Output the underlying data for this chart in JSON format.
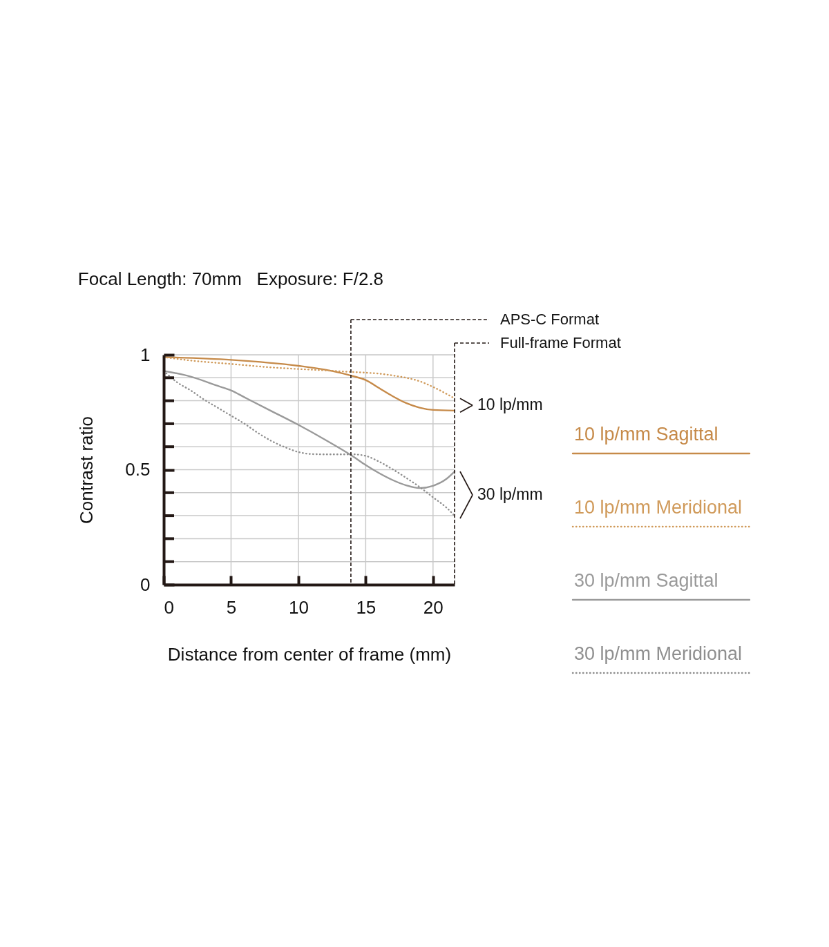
{
  "chart_data": {
    "type": "line",
    "title": "Focal Length: 70mm   Exposure: F/2.8",
    "xlabel": "Distance from center of frame (mm)",
    "ylabel": "Contrast ratio",
    "xlim": [
      0,
      21.6
    ],
    "ylim": [
      0,
      1
    ],
    "xticks": [
      0,
      5,
      10,
      15,
      20
    ],
    "yticks": [
      0,
      {
        "value": 0.1,
        "label": null
      },
      {
        "value": 0.2,
        "label": null
      },
      {
        "value": 0.3,
        "label": null
      },
      {
        "value": 0.4,
        "label": null
      },
      0.5,
      {
        "value": 0.6,
        "label": null
      },
      {
        "value": 0.7,
        "label": null
      },
      {
        "value": 0.8,
        "label": null
      },
      {
        "value": 0.9,
        "label": null
      },
      1
    ],
    "grid": true,
    "legend": "right",
    "series": [
      {
        "name": "10 lp/mm Sagittal",
        "color": "#c68a49",
        "line_style": "solid",
        "x": [
          0,
          5,
          10,
          12,
          14,
          15,
          16,
          17,
          18,
          19,
          20,
          21.6
        ],
        "values": [
          0.99,
          0.978,
          0.952,
          0.935,
          0.908,
          0.89,
          0.855,
          0.82,
          0.79,
          0.77,
          0.76,
          0.757
        ]
      },
      {
        "name": "10 lp/mm Meridional",
        "color": "#d09a5a",
        "line_style": "dotted",
        "x": [
          0,
          2,
          5,
          8,
          10,
          12,
          14,
          15,
          16,
          17,
          18,
          19,
          20,
          21,
          21.6
        ],
        "values": [
          0.99,
          0.975,
          0.96,
          0.945,
          0.938,
          0.932,
          0.925,
          0.922,
          0.918,
          0.91,
          0.9,
          0.885,
          0.86,
          0.83,
          0.81
        ]
      },
      {
        "name": "30 lp/mm Sagittal",
        "color": "#9a9a9a",
        "line_style": "solid",
        "x": [
          0,
          2,
          4,
          5,
          6,
          8,
          10,
          12,
          14,
          15,
          16,
          17,
          18,
          19,
          20,
          21,
          21.6
        ],
        "values": [
          0.93,
          0.905,
          0.865,
          0.845,
          0.815,
          0.755,
          0.695,
          0.63,
          0.56,
          0.52,
          0.485,
          0.455,
          0.432,
          0.42,
          0.43,
          0.46,
          0.492
        ]
      },
      {
        "name": "30 lp/mm Meridional",
        "color": "#8f8f8f",
        "line_style": "dotted",
        "x": [
          0,
          1,
          2,
          3,
          4,
          5,
          6,
          7,
          8,
          9,
          10,
          11,
          12,
          13,
          14,
          15,
          16,
          17,
          18,
          19,
          20,
          21,
          21.6
        ],
        "values": [
          0.93,
          0.88,
          0.845,
          0.805,
          0.77,
          0.735,
          0.7,
          0.66,
          0.625,
          0.598,
          0.577,
          0.568,
          0.567,
          0.567,
          0.567,
          0.56,
          0.535,
          0.502,
          0.465,
          0.425,
          0.38,
          0.335,
          0.3
        ]
      }
    ],
    "ref_lines": [
      {
        "axis": "x",
        "value": 13.9,
        "label": "APS-C Format",
        "color": "#231815",
        "line_style": "dashed"
      },
      {
        "axis": "x",
        "value": 21.6,
        "label": "Full-frame Format",
        "color": "#231815",
        "line_style": "dashed"
      }
    ],
    "annotations": [
      {
        "text": "10 lp/mm",
        "x": 21.6,
        "y": 0.78
      },
      {
        "text": "30 lp/mm",
        "x": 21.6,
        "y": 0.39
      }
    ]
  }
}
